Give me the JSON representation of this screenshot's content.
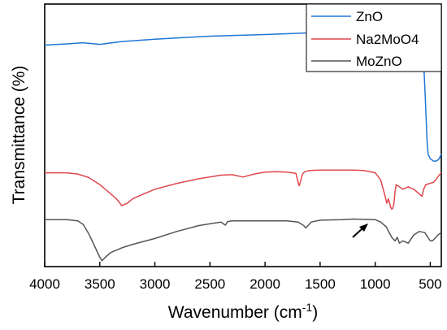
{
  "chart_data": {
    "type": "line",
    "title": "",
    "xlabel": "Wavenumber (cm",
    "xlabel_sup": "-1",
    "xlabel_end": ")",
    "ylabel": "Transmittance (%)",
    "xlim": [
      4000,
      400
    ],
    "x_reversed": true,
    "xticks": [
      4000,
      3500,
      3000,
      2500,
      2000,
      1500,
      1000,
      500
    ],
    "yticks_shown": false,
    "grid": false,
    "legend_position": "top-right",
    "series": [
      {
        "name": "ZnO",
        "color": "#1f77d4",
        "x": [
          4000,
          3800,
          3650,
          3500,
          3300,
          3000,
          2500,
          2000,
          1500,
          1200,
          1000,
          850,
          700,
          620,
          580,
          560,
          545,
          530,
          520,
          500,
          470,
          450,
          430,
          420,
          410,
          400
        ],
        "y": [
          82.5,
          83,
          83.5,
          82.8,
          84,
          85,
          86.3,
          87,
          87.9,
          88.5,
          88.8,
          89,
          88,
          87,
          84,
          75,
          60,
          42,
          36,
          34,
          33,
          33,
          33.5,
          34,
          35,
          36
        ]
      },
      {
        "name": "Na2MoO4",
        "color": "#e0474c",
        "x": [
          4000,
          3800,
          3700,
          3600,
          3500,
          3400,
          3350,
          3300,
          3250,
          3200,
          3100,
          3000,
          2800,
          2600,
          2400,
          2300,
          2200,
          2100,
          2000,
          1900,
          1800,
          1720,
          1700,
          1690,
          1680,
          1660,
          1640,
          1600,
          1500,
          1400,
          1300,
          1200,
          1100,
          1000,
          950,
          910,
          895,
          880,
          860,
          850,
          840,
          830,
          820,
          810,
          780,
          750,
          700,
          650,
          600,
          575,
          560,
          540,
          500,
          470,
          450,
          420,
          400
        ],
        "y": [
          28,
          28,
          27.5,
          26,
          23,
          19,
          17,
          14,
          15,
          17,
          19,
          21,
          23.5,
          25.5,
          27,
          27.2,
          26.2,
          27.5,
          28.3,
          28.5,
          28.3,
          27.8,
          24,
          22.5,
          24,
          27.5,
          28.5,
          29,
          29.2,
          29.2,
          29.2,
          29.2,
          29,
          28,
          25,
          18,
          15,
          17,
          13.5,
          12.5,
          13,
          15,
          20,
          23,
          22,
          21,
          22,
          21,
          19,
          18,
          21,
          23,
          23.5,
          24,
          25,
          27,
          28
        ]
      },
      {
        "name": "MoZnO",
        "color": "#555555",
        "x": [
          4000,
          3800,
          3700,
          3650,
          3600,
          3550,
          3500,
          3480,
          3450,
          3400,
          3300,
          3200,
          3000,
          2800,
          2600,
          2400,
          2360,
          2340,
          2300,
          2100,
          2000,
          1800,
          1700,
          1650,
          1630,
          1610,
          1580,
          1500,
          1300,
          1200,
          1000,
          950,
          900,
          850,
          820,
          800,
          780,
          750,
          700,
          650,
          600,
          550,
          500,
          480,
          450,
          430,
          400
        ],
        "y": [
          8,
          8,
          7.5,
          6,
          2,
          -3,
          -8,
          -9.5,
          -8,
          -6,
          -4,
          -2.5,
          0,
          3,
          5.5,
          7,
          5.7,
          7.2,
          7.5,
          7.5,
          7.5,
          7.5,
          7,
          5.5,
          4.5,
          5.5,
          7,
          7.8,
          8,
          8.3,
          8,
          7,
          5,
          0.5,
          -1,
          0.5,
          -2,
          -1,
          -2,
          1.5,
          3,
          2.5,
          -1,
          -1,
          0.5,
          1.5,
          2.5
        ]
      }
    ],
    "annotations": [
      {
        "type": "arrow",
        "at_x": 970,
        "at_y": 4.5,
        "description": "arrow pointing up-right toward MoZnO curve"
      }
    ]
  }
}
